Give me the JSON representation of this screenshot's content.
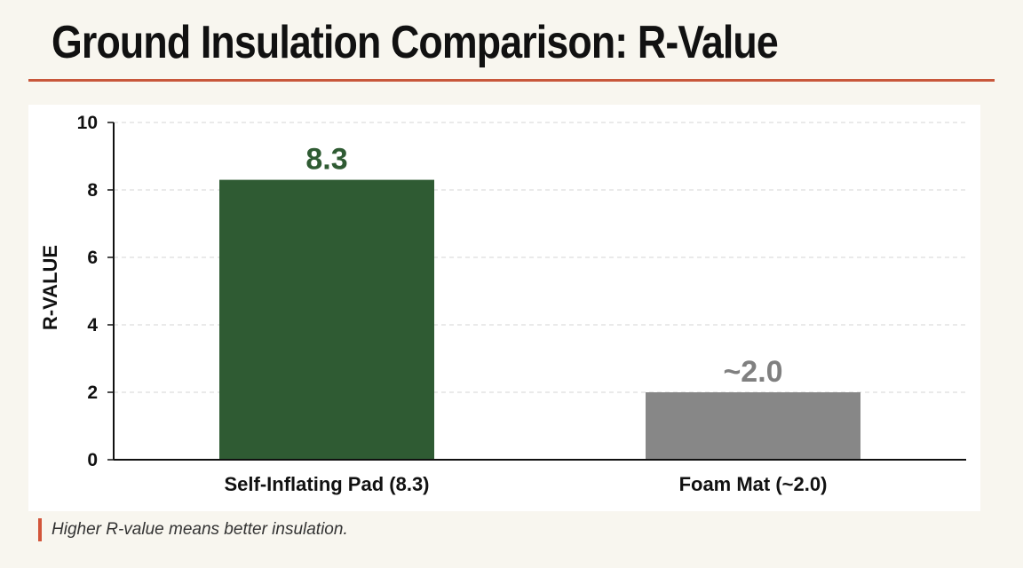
{
  "title": "Ground Insulation Comparison: R-Value",
  "footnote": "Higher R-value means better insulation.",
  "chart_data": {
    "type": "bar",
    "ylabel": "R-VALUE",
    "ylim": [
      0,
      10
    ],
    "yticks": [
      0,
      2,
      4,
      6,
      8,
      10
    ],
    "grid": true,
    "categories": [
      "Self-Inflating Pad (8.3)",
      "Foam Mat (~2.0)"
    ],
    "values": [
      8.3,
      2.0
    ],
    "data_labels": [
      "8.3",
      "~2.0"
    ],
    "bar_colors": [
      "#2f5b33",
      "#878787"
    ],
    "label_colors": [
      "#2f5b33",
      "#808080"
    ]
  }
}
